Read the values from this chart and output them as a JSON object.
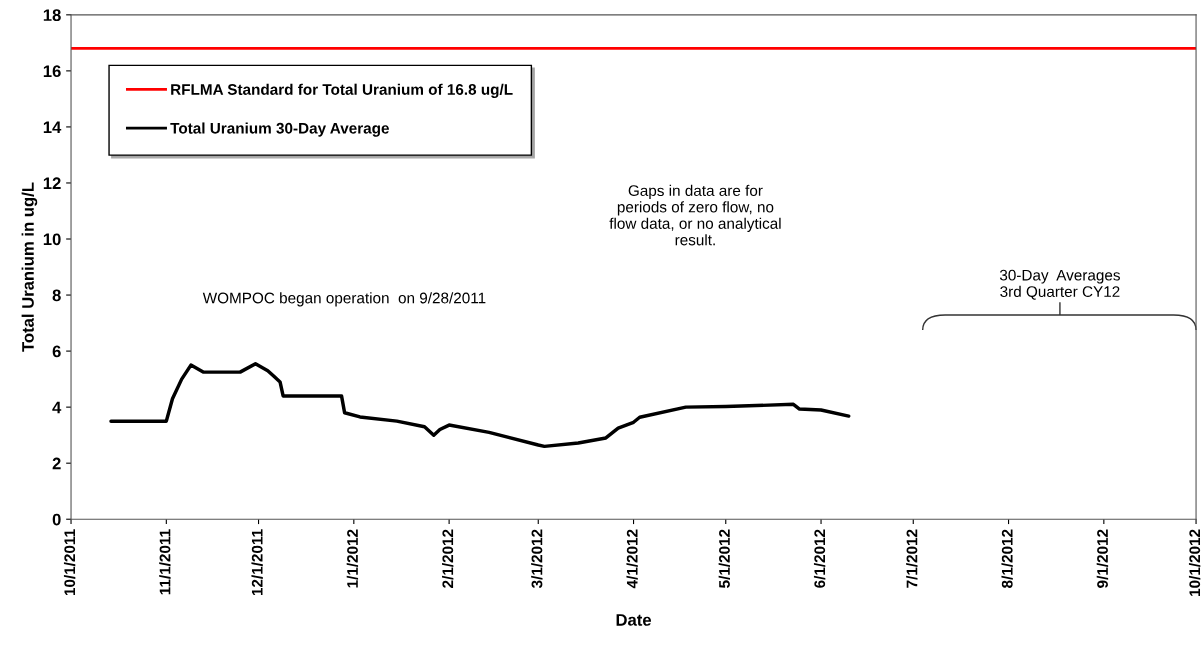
{
  "chart_data": {
    "type": "line",
    "xlabel": "Date",
    "ylabel": "Total Uranium in ug/L",
    "x": [
      "2011-10-14",
      "2011-11-01",
      "2011-11-03",
      "2011-11-06",
      "2011-11-09",
      "2011-11-13",
      "2011-11-25",
      "2011-11-30",
      "2011-12-04",
      "2011-12-06",
      "2011-12-08",
      "2011-12-09",
      "2011-12-28",
      "2011-12-29",
      "2012-01-03",
      "2012-01-15",
      "2012-01-24",
      "2012-01-27",
      "2012-01-29",
      "2012-02-01",
      "2012-02-14",
      "2012-03-01",
      "2012-03-03",
      "2012-03-14",
      "2012-03-23",
      "2012-03-27",
      "2012-04-01",
      "2012-04-03",
      "2012-04-18",
      "2012-05-01",
      "2012-05-23",
      "2012-05-25",
      "2012-06-01",
      "2012-06-10"
    ],
    "series": [
      {
        "name": "Total Uranium 30-Day Average",
        "color": "#000000",
        "values": [
          3.5,
          3.5,
          4.3,
          5.0,
          5.5,
          5.25,
          5.25,
          5.55,
          5.3,
          5.1,
          4.9,
          4.4,
          4.4,
          3.8,
          3.65,
          3.5,
          3.3,
          3.0,
          3.2,
          3.36,
          3.1,
          2.65,
          2.6,
          2.72,
          2.9,
          3.25,
          3.46,
          3.64,
          4.0,
          4.02,
          4.1,
          3.93,
          3.9,
          3.68
        ]
      }
    ],
    "ref_lines": [
      {
        "axis": "y",
        "value": 16.8,
        "label": "RFLMA Standard for Total Uranium of 16.8 ug/L",
        "color": "#ff0000"
      }
    ],
    "xlim": [
      "2011-10-01",
      "2012-10-01"
    ],
    "xticks": [
      {
        "value": "2011-10-01",
        "label": "10/1/2011"
      },
      {
        "value": "2011-11-01",
        "label": "11/1/2011"
      },
      {
        "value": "2011-12-01",
        "label": "12/1/2011"
      },
      {
        "value": "2012-01-01",
        "label": "1/1/2012"
      },
      {
        "value": "2012-02-01",
        "label": "2/1/2012"
      },
      {
        "value": "2012-03-01",
        "label": "3/1/2012"
      },
      {
        "value": "2012-04-01",
        "label": "4/1/2012"
      },
      {
        "value": "2012-05-01",
        "label": "5/1/2012"
      },
      {
        "value": "2012-06-01",
        "label": "6/1/2012"
      },
      {
        "value": "2012-07-01",
        "label": "7/1/2012"
      },
      {
        "value": "2012-08-01",
        "label": "8/1/2012"
      },
      {
        "value": "2012-09-01",
        "label": "9/1/2012"
      },
      {
        "value": "2012-10-01",
        "label": "10/1/2012"
      }
    ],
    "ylim": [
      0,
      18
    ],
    "yticks": [
      0,
      2,
      4,
      6,
      8,
      10,
      12,
      14,
      16,
      18
    ],
    "annotations": [
      "WOMPOC began operation  on 9/28/2011",
      "Gaps in data are for\nperiods of zero flow, no\nflow data, or no analytical\nresult.",
      "30-Day  Averages\n3rd Quarter CY12"
    ],
    "grid": false,
    "legend": "top left",
    "marker": "none",
    "line_style": "solid"
  }
}
